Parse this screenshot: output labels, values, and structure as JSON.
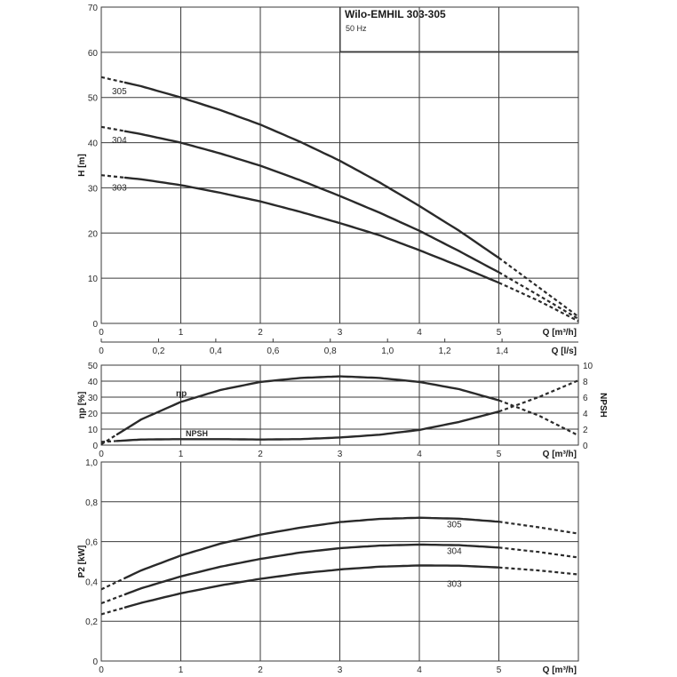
{
  "chart_data": [
    {
      "type": "line",
      "title": "Wilo-EMHIL 303-305",
      "subtitle": "50 Hz",
      "xlabel": "Q [m³/h]",
      "x2label": "Q [l/s]",
      "ylabel": "H [m]",
      "xlim": [
        0,
        6
      ],
      "ylim": [
        0,
        70
      ],
      "xticks": [
        "0",
        "1",
        "2",
        "3",
        "4",
        "5"
      ],
      "x2ticks": [
        "0",
        "0,2",
        "0,4",
        "0,6",
        "0,8",
        "1,0",
        "1,2",
        "1,4"
      ],
      "yticks": [
        "0",
        "10",
        "20",
        "30",
        "40",
        "50",
        "60",
        "70"
      ],
      "grid": true,
      "series": [
        {
          "name": "305",
          "x": [
            0,
            0.5,
            1,
            1.5,
            2,
            2.5,
            3,
            3.5,
            4,
            4.5,
            5,
            5.5,
            6
          ],
          "y": [
            54.5,
            52.5,
            50,
            47.2,
            44,
            40.2,
            36,
            31.2,
            26,
            20.5,
            14.5,
            8,
            1.5
          ],
          "solid_range": [
            0.3,
            5
          ]
        },
        {
          "name": "304",
          "x": [
            0,
            0.5,
            1,
            1.5,
            2,
            2.5,
            3,
            3.5,
            4,
            4.5,
            5,
            5.5,
            6
          ],
          "y": [
            43.5,
            41.9,
            40,
            37.6,
            34.9,
            31.7,
            28.2,
            24.5,
            20.5,
            16,
            11.3,
            6.2,
            1
          ],
          "solid_range": [
            0.3,
            5
          ]
        },
        {
          "name": "303",
          "x": [
            0,
            0.5,
            1,
            1.5,
            2,
            2.5,
            3,
            3.5,
            4,
            4.5,
            5,
            5.5,
            6
          ],
          "y": [
            32.8,
            31.9,
            30.6,
            28.9,
            27,
            24.7,
            22.2,
            19.5,
            16.2,
            12.7,
            9,
            5,
            0.5
          ],
          "solid_range": [
            0.3,
            5
          ]
        }
      ]
    },
    {
      "type": "line",
      "xlabel": "Q [m³/h]",
      "ylabel": "ηp [%]",
      "y2label": "NPSH",
      "xlim": [
        0,
        6
      ],
      "ylim": [
        0,
        50
      ],
      "y2lim": [
        0,
        10
      ],
      "xticks": [
        "0",
        "1",
        "2",
        "3",
        "4",
        "5"
      ],
      "yticks": [
        "0",
        "10",
        "20",
        "30",
        "40",
        "50"
      ],
      "y2ticks": [
        "0",
        "2",
        "4",
        "6",
        "8",
        "10"
      ],
      "grid": true,
      "series": [
        {
          "name": "ηp",
          "axis": "left",
          "x": [
            0,
            0.5,
            1,
            1.5,
            2,
            2.5,
            3,
            3.5,
            4,
            4.5,
            5,
            5.5,
            6
          ],
          "y": [
            0.5,
            16,
            27,
            34.5,
            39.5,
            42,
            43,
            42,
            39.5,
            35,
            28,
            18.5,
            6
          ],
          "solid_range": [
            0.2,
            5
          ]
        },
        {
          "name": "NPSH",
          "axis": "right",
          "x": [
            0,
            0.5,
            1,
            1.5,
            2,
            2.5,
            3,
            3.5,
            4,
            4.5,
            5,
            5.5,
            6
          ],
          "y": [
            0.4,
            0.7,
            0.75,
            0.75,
            0.7,
            0.75,
            0.95,
            1.3,
            1.9,
            2.9,
            4.2,
            6,
            8.1
          ],
          "solid_range": [
            0.2,
            5
          ]
        }
      ]
    },
    {
      "type": "line",
      "xlabel": "Q [m³/h]",
      "ylabel": "P2 [kW]",
      "xlim": [
        0,
        6
      ],
      "ylim": [
        0,
        1.0
      ],
      "xticks": [
        "0",
        "1",
        "2",
        "3",
        "4",
        "5"
      ],
      "yticks": [
        "0",
        "0,2",
        "0,4",
        "0,6",
        "0,8",
        "1,0"
      ],
      "grid": true,
      "series": [
        {
          "name": "305",
          "x": [
            0,
            0.5,
            1,
            1.5,
            2,
            2.5,
            3,
            3.5,
            4,
            4.5,
            5,
            5.5,
            6
          ],
          "y": [
            0.36,
            0.455,
            0.53,
            0.59,
            0.635,
            0.67,
            0.698,
            0.714,
            0.72,
            0.715,
            0.7,
            0.672,
            0.64
          ],
          "solid_range": [
            0.3,
            5
          ]
        },
        {
          "name": "304",
          "x": [
            0,
            0.5,
            1,
            1.5,
            2,
            2.5,
            3,
            3.5,
            4,
            4.5,
            5,
            5.5,
            6
          ],
          "y": [
            0.29,
            0.365,
            0.425,
            0.474,
            0.513,
            0.545,
            0.567,
            0.58,
            0.585,
            0.582,
            0.57,
            0.548,
            0.52
          ],
          "solid_range": [
            0.3,
            5
          ]
        },
        {
          "name": "303",
          "x": [
            0,
            0.5,
            1,
            1.5,
            2,
            2.5,
            3,
            3.5,
            4,
            4.5,
            5,
            5.5,
            6
          ],
          "y": [
            0.235,
            0.292,
            0.34,
            0.38,
            0.413,
            0.44,
            0.46,
            0.474,
            0.48,
            0.479,
            0.47,
            0.455,
            0.435
          ],
          "solid_range": [
            0.3,
            5
          ]
        }
      ]
    }
  ]
}
